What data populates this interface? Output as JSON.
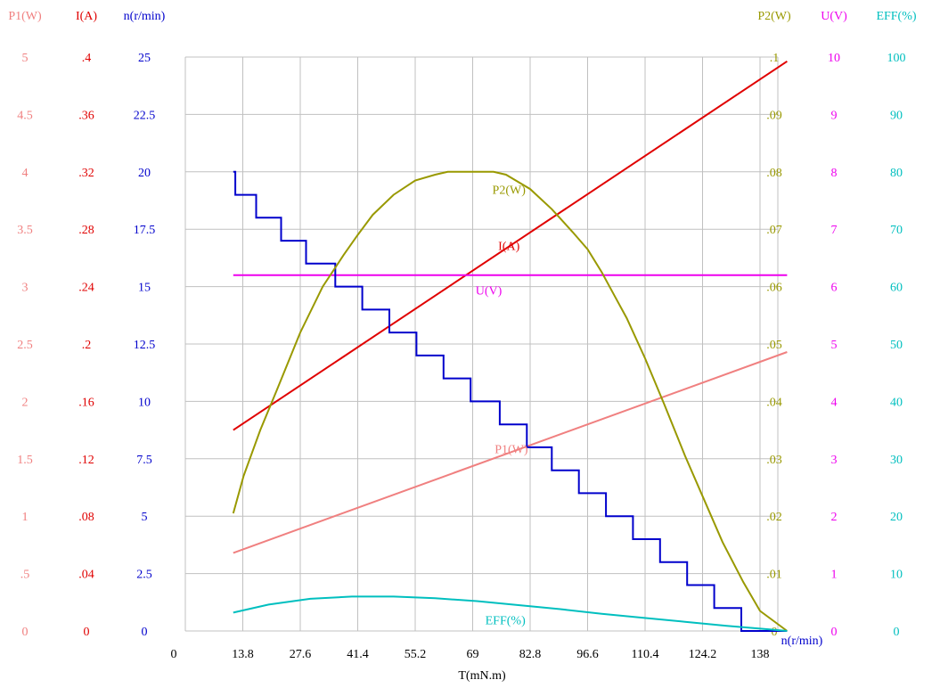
{
  "chart_data": {
    "type": "line",
    "xlabel": "T(mN.m)",
    "x_ticks": [
      "0",
      "13.8",
      "27.6",
      "41.4",
      "55.2",
      "69",
      "82.8",
      "96.6",
      "110.4",
      "124.2",
      "138"
    ],
    "xlim": [
      0,
      145
    ],
    "grid": true,
    "left_axes": [
      {
        "id": "p1",
        "label": "P1(W)",
        "color": "#f08080",
        "ticks": [
          "0",
          ".5",
          "1",
          "1.5",
          "2",
          "2.5",
          "3",
          "3.5",
          "4",
          "4.5",
          "5"
        ]
      },
      {
        "id": "i",
        "label": "I(A)",
        "color": "#e00000",
        "ticks": [
          "0",
          ".04",
          ".08",
          ".12",
          ".16",
          ".2",
          ".24",
          ".28",
          ".32",
          ".36",
          ".4"
        ]
      },
      {
        "id": "n",
        "label": "n(r/min)",
        "color": "#0000cc",
        "ticks": [
          "0",
          "2.5",
          "5",
          "7.5",
          "10",
          "12.5",
          "15",
          "17.5",
          "20",
          "22.5",
          "25"
        ]
      }
    ],
    "right_axes": [
      {
        "id": "p2",
        "label": "P2(W)",
        "color": "#999900",
        "ticks": [
          "0",
          ".01",
          ".02",
          ".03",
          ".04",
          ".05",
          ".06",
          ".07",
          ".08",
          ".09",
          ".1"
        ]
      },
      {
        "id": "u",
        "label": "U(V)",
        "color": "#ee00ee",
        "ticks": [
          "0",
          "1",
          "2",
          "3",
          "4",
          "5",
          "6",
          "7",
          "8",
          "9",
          "10"
        ]
      },
      {
        "id": "eff",
        "label": "EFF(%)",
        "color": "#00bfbf",
        "ticks": [
          "0",
          "10",
          "20",
          "30",
          "40",
          "50",
          "60",
          "70",
          "80",
          "90",
          "100"
        ]
      }
    ],
    "series": [
      {
        "name": "P1(W)",
        "axis": "p1",
        "color": "#f08080",
        "step": false,
        "points": [
          [
            11.5,
            0.68
          ],
          [
            144.5,
            2.43
          ]
        ]
      },
      {
        "name": "I(A)",
        "axis": "i",
        "color": "#e00000",
        "step": false,
        "points": [
          [
            11.5,
            0.14
          ],
          [
            144.5,
            0.397
          ]
        ]
      },
      {
        "name": "U(V)",
        "axis": "u",
        "color": "#ee00ee",
        "step": false,
        "points": [
          [
            11.5,
            6.2
          ],
          [
            144.5,
            6.2
          ]
        ]
      },
      {
        "name": "n(r/min)",
        "axis": "n",
        "color": "#0000cc",
        "step": true,
        "points": [
          [
            11.5,
            20
          ],
          [
            12.0,
            19
          ],
          [
            17.0,
            18
          ],
          [
            23.0,
            17
          ],
          [
            29.0,
            16
          ],
          [
            36.0,
            15
          ],
          [
            42.5,
            14
          ],
          [
            49.0,
            13
          ],
          [
            55.5,
            12
          ],
          [
            62.0,
            11
          ],
          [
            68.5,
            10
          ],
          [
            75.5,
            9
          ],
          [
            82.0,
            8
          ],
          [
            88.0,
            7
          ],
          [
            94.5,
            6
          ],
          [
            101.0,
            5
          ],
          [
            107.5,
            4
          ],
          [
            114.0,
            3
          ],
          [
            120.5,
            2
          ],
          [
            127.0,
            1
          ],
          [
            133.5,
            0
          ],
          [
            144.5,
            0
          ]
        ]
      },
      {
        "name": "P2(W)",
        "axis": "p2",
        "color": "#999900",
        "step": false,
        "points": [
          [
            11.5,
            0.0205
          ],
          [
            14,
            0.027
          ],
          [
            18,
            0.035
          ],
          [
            22,
            0.042
          ],
          [
            27.6,
            0.052
          ],
          [
            33,
            0.06
          ],
          [
            38,
            0.0655
          ],
          [
            41.4,
            0.069
          ],
          [
            45,
            0.0725
          ],
          [
            50,
            0.076
          ],
          [
            55.2,
            0.0785
          ],
          [
            60,
            0.0795
          ],
          [
            63,
            0.08
          ],
          [
            70,
            0.08
          ],
          [
            74,
            0.08
          ],
          [
            77,
            0.0795
          ],
          [
            82.8,
            0.077
          ],
          [
            88,
            0.0735
          ],
          [
            93,
            0.0695
          ],
          [
            96.6,
            0.0665
          ],
          [
            100,
            0.0625
          ],
          [
            103,
            0.0585
          ],
          [
            106,
            0.0545
          ],
          [
            110.4,
            0.0475
          ],
          [
            115,
            0.0395
          ],
          [
            120,
            0.0305
          ],
          [
            124.2,
            0.0235
          ],
          [
            129,
            0.0155
          ],
          [
            134,
            0.0085
          ],
          [
            138,
            0.0035
          ],
          [
            144.5,
            0.0
          ]
        ]
      },
      {
        "name": "EFF(%)",
        "axis": "eff",
        "color": "#00bfbf",
        "step": false,
        "points": [
          [
            11.5,
            3.2
          ],
          [
            20,
            4.6
          ],
          [
            30,
            5.6
          ],
          [
            40,
            6.0
          ],
          [
            50,
            6.0
          ],
          [
            60,
            5.7
          ],
          [
            70,
            5.2
          ],
          [
            80,
            4.5
          ],
          [
            90,
            3.8
          ],
          [
            100,
            3.0
          ],
          [
            110,
            2.3
          ],
          [
            120,
            1.6
          ],
          [
            130,
            0.9
          ],
          [
            140,
            0.3
          ],
          [
            144.5,
            0.0
          ]
        ]
      }
    ],
    "annotations": [
      {
        "text": "P2(W)",
        "series": "P2(W)",
        "at_x": 79
      },
      {
        "text": "I(A)",
        "series": "I(A)",
        "at_x": 79
      },
      {
        "text": "U(V)",
        "series": "U(V)",
        "at_x": 75
      },
      {
        "text": "P1(W)",
        "series": "P1(W)",
        "at_x": 80
      },
      {
        "text": "EFF(%)",
        "series": "EFF(%)",
        "at_x": 79
      }
    ],
    "corner_label": {
      "text": "n(r/min)",
      "color": "#0000cc"
    }
  }
}
